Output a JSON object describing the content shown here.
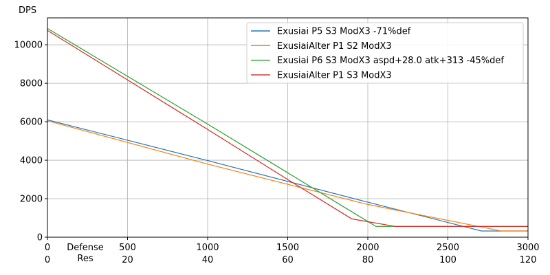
{
  "chart_data": {
    "type": "line",
    "ylabel": "DPS",
    "xlabel_primary": "Defense",
    "xlabel_secondary": "Res",
    "xlim": [
      0,
      3000
    ],
    "ylim": [
      0,
      11400
    ],
    "grid": true,
    "legend_position": "top-right",
    "x_ticks": [
      0,
      500,
      1000,
      1500,
      2000,
      2500,
      3000
    ],
    "x_ticks_secondary": [
      "0",
      "20",
      "40",
      "60",
      "80",
      "100",
      "120"
    ],
    "y_ticks": [
      0,
      2000,
      4000,
      6000,
      8000,
      10000
    ],
    "series": [
      {
        "name": "Exusiai P5 S3 ModX3 -71%def",
        "color": "#1f77b4",
        "points": [
          [
            0,
            6100
          ],
          [
            1000,
            3980
          ],
          [
            2000,
            1820
          ],
          [
            2710,
            320
          ],
          [
            3000,
            320
          ]
        ]
      },
      {
        "name": "ExusiaiAlter P1 S2 ModX3",
        "color": "#ff7f0e",
        "points": [
          [
            0,
            6050
          ],
          [
            1000,
            3800
          ],
          [
            2000,
            1700
          ],
          [
            2830,
            330
          ],
          [
            3000,
            330
          ]
        ]
      },
      {
        "name": "Exusiai P6 S3 ModX3 aspd+28.0 atk+313 -45%def",
        "color": "#2ca02c",
        "points": [
          [
            0,
            10850
          ],
          [
            1000,
            5880
          ],
          [
            1500,
            3350
          ],
          [
            2050,
            560
          ],
          [
            3000,
            560
          ]
        ]
      },
      {
        "name": "ExusiaiAlter P1 S3 ModX3",
        "color": "#d62728",
        "points": [
          [
            0,
            10750
          ],
          [
            1000,
            5600
          ],
          [
            1500,
            3000
          ],
          [
            1900,
            950
          ],
          [
            2170,
            560
          ],
          [
            3000,
            560
          ]
        ]
      }
    ]
  }
}
